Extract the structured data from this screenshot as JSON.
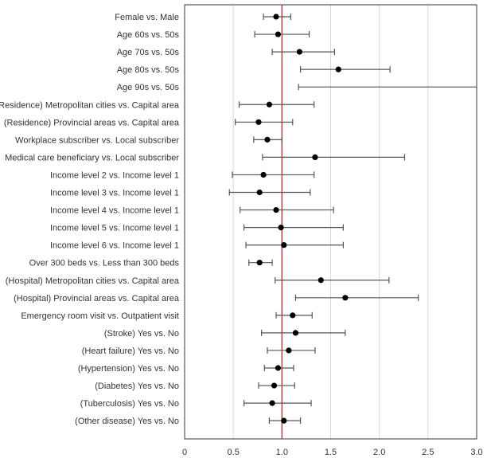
{
  "chart_data": {
    "type": "forest",
    "title": "",
    "xlabel": "",
    "ylabel": "",
    "xlim": [
      0,
      3.0
    ],
    "xticks": [
      "0",
      "0.5",
      "1.0",
      "1.5",
      "2.0",
      "2.5",
      "3.0"
    ],
    "reference_line": 1.0,
    "grid": "vertical",
    "colors": {
      "reference_line": "#a0524d",
      "grid": "#d9d9d9",
      "point": "#000000",
      "ci_line": "#555555",
      "frame": "#333333"
    },
    "rows": [
      {
        "label": "Female vs. Male",
        "or": 0.94,
        "lo": 0.81,
        "hi": 1.09
      },
      {
        "label": "Age 60s vs. 50s",
        "or": 0.96,
        "lo": 0.72,
        "hi": 1.28
      },
      {
        "label": "Age 70s vs. 50s",
        "or": 1.18,
        "lo": 0.9,
        "hi": 1.54
      },
      {
        "label": "Age 80s vs. 50s",
        "or": 1.58,
        "lo": 1.19,
        "hi": 2.11
      },
      {
        "label": "Age 90s vs. 50s",
        "or": null,
        "lo": 1.17,
        "hi": 3.0
      },
      {
        "label": "(Residence) Metropolitan cities vs. Capital area",
        "or": 0.87,
        "lo": 0.56,
        "hi": 1.33
      },
      {
        "label": "(Residence) Provincial areas vs. Capital area",
        "or": 0.76,
        "lo": 0.52,
        "hi": 1.11
      },
      {
        "label": "Workplace subscriber vs. Local subscriber",
        "or": 0.85,
        "lo": 0.71,
        "hi": 1.0
      },
      {
        "label": "Medical care beneficiary vs. Local subscriber",
        "or": 1.34,
        "lo": 0.8,
        "hi": 2.26
      },
      {
        "label": "Income level 2 vs. Income level 1",
        "or": 0.81,
        "lo": 0.49,
        "hi": 1.33
      },
      {
        "label": "Income level 3 vs. Income level 1",
        "or": 0.77,
        "lo": 0.46,
        "hi": 1.29
      },
      {
        "label": "Income level 4 vs. Income level 1",
        "or": 0.94,
        "lo": 0.57,
        "hi": 1.53
      },
      {
        "label": "Income level 5 vs. Income level 1",
        "or": 0.99,
        "lo": 0.61,
        "hi": 1.63
      },
      {
        "label": "Income level 6 vs. Income level 1",
        "or": 1.02,
        "lo": 0.63,
        "hi": 1.63
      },
      {
        "label": "Over 300 beds vs. Less than 300 beds",
        "or": 0.77,
        "lo": 0.66,
        "hi": 0.9
      },
      {
        "label": "(Hospital) Metropolitan cities vs. Capital area",
        "or": 1.4,
        "lo": 0.93,
        "hi": 2.1
      },
      {
        "label": "(Hospital) Provincial areas vs. Capital area",
        "or": 1.65,
        "lo": 1.14,
        "hi": 2.4
      },
      {
        "label": "Emergency room visit vs. Outpatient visit",
        "or": 1.11,
        "lo": 0.94,
        "hi": 1.31
      },
      {
        "label": "(Stroke) Yes vs. No",
        "or": 1.14,
        "lo": 0.79,
        "hi": 1.65
      },
      {
        "label": "(Heart failure) Yes vs. No",
        "or": 1.07,
        "lo": 0.85,
        "hi": 1.34
      },
      {
        "label": "(Hypertension) Yes vs. No",
        "or": 0.96,
        "lo": 0.82,
        "hi": 1.12
      },
      {
        "label": "(Diabetes) Yes vs. No",
        "or": 0.92,
        "lo": 0.76,
        "hi": 1.13
      },
      {
        "label": "(Tuberculosis) Yes vs. No",
        "or": 0.9,
        "lo": 0.61,
        "hi": 1.3
      },
      {
        "label": "(Other disease) Yes vs. No",
        "or": 1.02,
        "lo": 0.87,
        "hi": 1.19
      }
    ]
  }
}
